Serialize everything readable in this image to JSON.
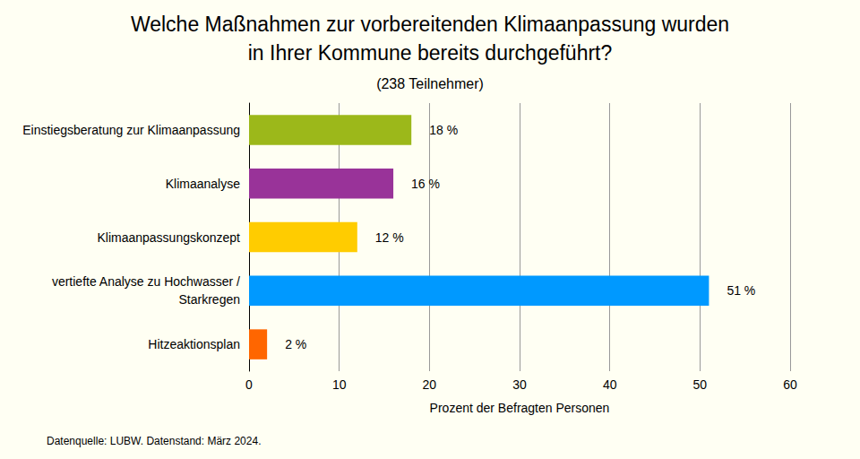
{
  "chart_data": {
    "type": "bar",
    "orientation": "horizontal",
    "title": "Welche Maßnahmen zur vorbereitenden Klimaanpassung wurden\nin Ihrer Kommune bereits durchgeführt?",
    "subtitle": "(238 Teilnehmer)",
    "x_label": "Prozent der Befragten Personen",
    "annotation": "Datenquelle: LUBW. Datenstand: März 2024.",
    "categories": [
      "Einstiegsberatung zur Klimaanpassung",
      "Klimaanalyse",
      "Klimaanpassungskonzept",
      "vertiefte Analyse zu Hochwasser /\nStarkregen",
      "Hitzeaktionsplan"
    ],
    "values": [
      18,
      16,
      12,
      51,
      2
    ],
    "value_labels": [
      "18 %",
      "16 %",
      "12 %",
      "51 %",
      "2 %"
    ],
    "colors": [
      "#9cb81a",
      "#993399",
      "#ffcc00",
      "#0099ff",
      "#ff6600"
    ],
    "data_labels": true,
    "xlim": [
      0,
      60
    ],
    "xticks": [
      0,
      10,
      20,
      30,
      40,
      50,
      60
    ],
    "grid": true
  }
}
